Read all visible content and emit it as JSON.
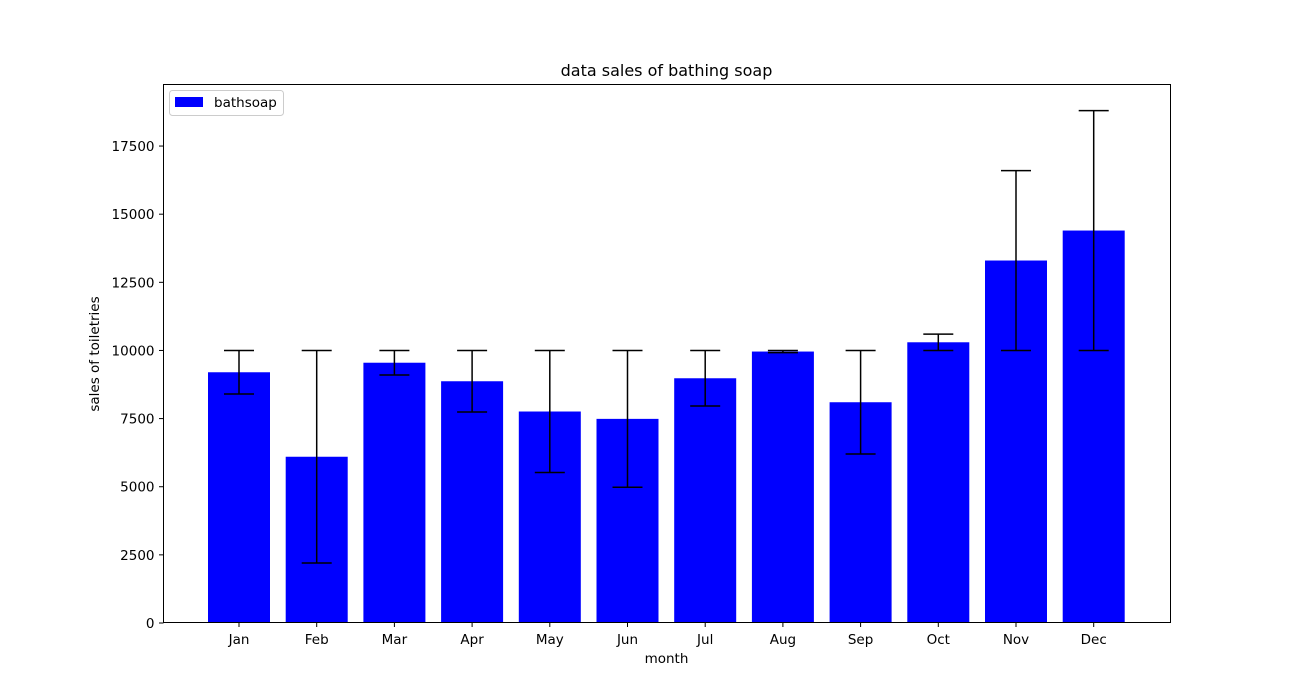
{
  "chart_data": {
    "type": "bar",
    "title": "data sales of bathing soap",
    "xlabel": "month",
    "ylabel": "sales of toiletries",
    "categories": [
      "Jan",
      "Feb",
      "Mar",
      "Apr",
      "May",
      "Jun",
      "Jul",
      "Aug",
      "Sep",
      "Oct",
      "Nov",
      "Dec"
    ],
    "series": [
      {
        "name": "bathsoap",
        "color": "#0000ff",
        "values": [
          9200,
          6100,
          9550,
          8870,
          7760,
          7490,
          8980,
          9960,
          8100,
          10300,
          13300,
          14400
        ],
        "error_low": [
          8400,
          2200,
          9100,
          7740,
          5520,
          4980,
          7960,
          9920,
          6200,
          10000,
          10000,
          10000
        ],
        "error_high": [
          10000,
          10000,
          10000,
          10000,
          10000,
          10000,
          10000,
          10000,
          10000,
          10600,
          16600,
          18800
        ]
      }
    ],
    "yticks": [
      0,
      2500,
      5000,
      7500,
      10000,
      12500,
      15000,
      17500
    ],
    "ylim": [
      0,
      19740
    ],
    "legend": {
      "position": "upper-left",
      "label": "bathsoap"
    },
    "grid": false,
    "colors": {
      "bar": "#0000ff",
      "errorbar": "#000000",
      "axis": "#000000"
    }
  }
}
